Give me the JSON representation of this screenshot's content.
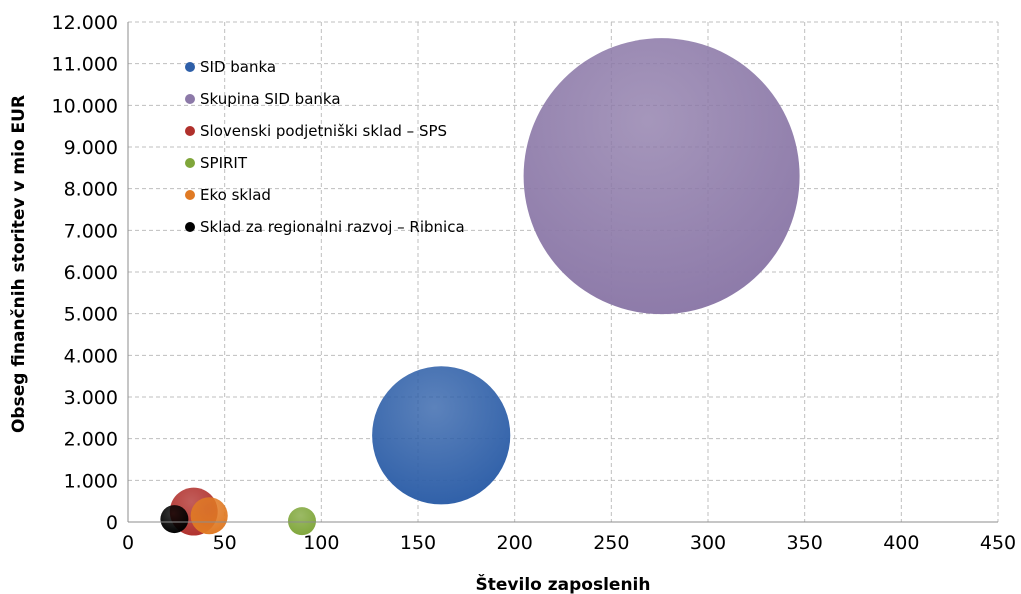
{
  "chart_data": {
    "type": "bubble",
    "title": "",
    "xlabel": "Število zaposlenih",
    "ylabel": "Obseg finančnih storitev v mio EUR",
    "xlim": [
      0,
      450
    ],
    "ylim": [
      0,
      12000
    ],
    "x_ticks": [
      0,
      50,
      100,
      150,
      200,
      250,
      300,
      350,
      400,
      450
    ],
    "y_ticks": [
      0,
      1000,
      2000,
      3000,
      4000,
      5000,
      6000,
      7000,
      8000,
      9000,
      10000,
      11000,
      12000
    ],
    "x_tick_labels": [
      "0",
      "50",
      "100",
      "150",
      "200",
      "250",
      "300",
      "350",
      "400",
      "450"
    ],
    "y_tick_labels": [
      "0",
      "1.000",
      "2.000",
      "3.000",
      "4.000",
      "5.000",
      "6.000",
      "7.000",
      "8.000",
      "9.000",
      "10.000",
      "11.000",
      "12.000"
    ],
    "grid": true,
    "legend_position": "top-left",
    "series": [
      {
        "name": "SID banka",
        "x": 162,
        "y": 2080,
        "size": 2080,
        "color": "#2E5FA8"
      },
      {
        "name": "Skupina SID banka",
        "x": 276,
        "y": 8300,
        "size": 8300,
        "color": "#8C79A8"
      },
      {
        "name": "Slovenski podjetniški sklad – SPS",
        "x": 34,
        "y": 250,
        "size": 250,
        "color": "#B0302C"
      },
      {
        "name": "SPIRIT",
        "x": 90,
        "y": 20,
        "size": 20,
        "color": "#7FA63A"
      },
      {
        "name": "Eko sklad",
        "x": 42,
        "y": 150,
        "size": 150,
        "color": "#E07A24"
      },
      {
        "name": "Sklad za regionalni razvoj – Ribnica",
        "x": 24,
        "y": 70,
        "size": 70,
        "color": "#000000"
      }
    ]
  }
}
